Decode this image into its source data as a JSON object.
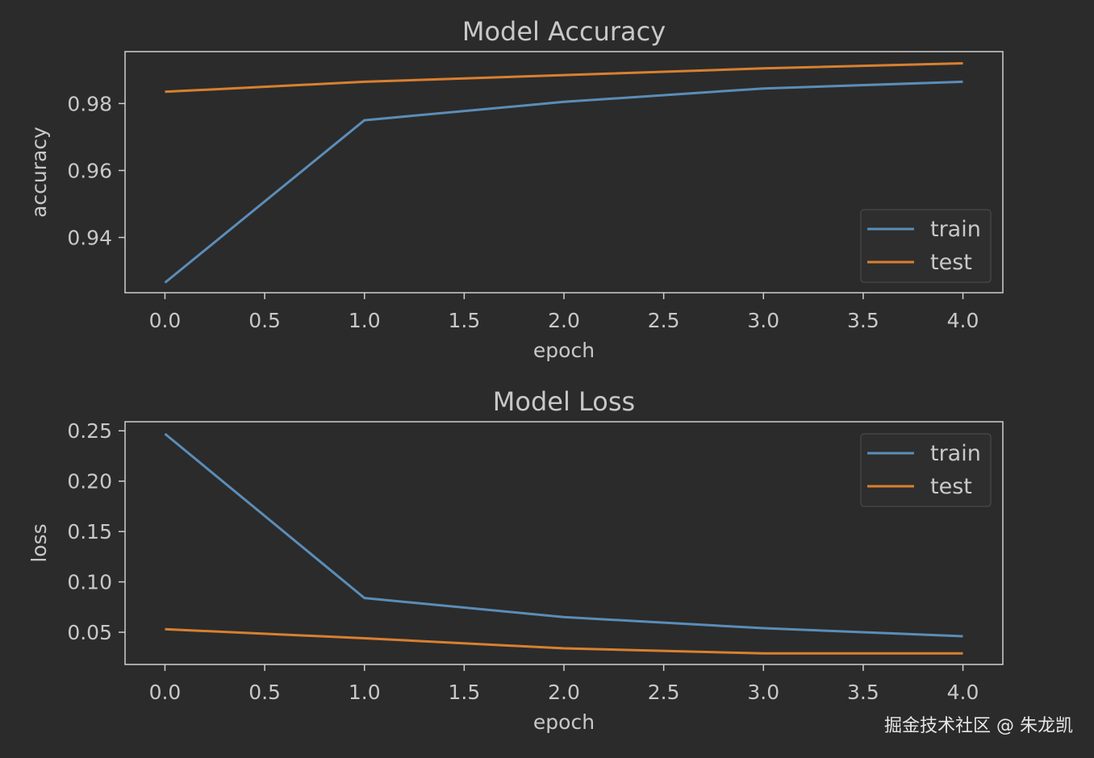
{
  "theme": {
    "background": "#2b2b2b",
    "axes_color": "#cfcfcf",
    "text_color": "#c8c8c8",
    "train_color": "#5b8db8",
    "test_color": "#d98030",
    "legend_bg": "#2e2e2e",
    "legend_border": "#444444"
  },
  "chart_data": [
    {
      "type": "line",
      "title": "Model Accuracy",
      "xlabel": "epoch",
      "ylabel": "accuracy",
      "x": [
        0,
        1,
        2,
        3,
        4
      ],
      "xlim": [
        -0.2,
        4.2
      ],
      "ylim": [
        0.9235,
        0.9955
      ],
      "xticks": [
        0.0,
        0.5,
        1.0,
        1.5,
        2.0,
        2.5,
        3.0,
        3.5,
        4.0
      ],
      "xtick_labels": [
        "0.0",
        "0.5",
        "1.0",
        "1.5",
        "2.0",
        "2.5",
        "3.0",
        "3.5",
        "4.0"
      ],
      "yticks": [
        0.94,
        0.96,
        0.98
      ],
      "ytick_labels": [
        "0.94",
        "0.96",
        "0.98"
      ],
      "grid": false,
      "legend_position": "lower-right",
      "series": [
        {
          "name": "train",
          "values": [
            0.9265,
            0.975,
            0.9805,
            0.9845,
            0.9865
          ]
        },
        {
          "name": "test",
          "values": [
            0.9835,
            0.9865,
            0.9885,
            0.9905,
            0.992
          ]
        }
      ]
    },
    {
      "type": "line",
      "title": "Model Loss",
      "xlabel": "epoch",
      "ylabel": "loss",
      "x": [
        0,
        1,
        2,
        3,
        4
      ],
      "xlim": [
        -0.2,
        4.2
      ],
      "ylim": [
        0.018,
        0.259
      ],
      "xticks": [
        0.0,
        0.5,
        1.0,
        1.5,
        2.0,
        2.5,
        3.0,
        3.5,
        4.0
      ],
      "xtick_labels": [
        "0.0",
        "0.5",
        "1.0",
        "1.5",
        "2.0",
        "2.5",
        "3.0",
        "3.5",
        "4.0"
      ],
      "yticks": [
        0.05,
        0.1,
        0.15,
        0.2,
        0.25
      ],
      "ytick_labels": [
        "0.05",
        "0.10",
        "0.15",
        "0.20",
        "0.25"
      ],
      "grid": false,
      "legend_position": "upper-right",
      "series": [
        {
          "name": "train",
          "values": [
            0.247,
            0.084,
            0.065,
            0.054,
            0.046
          ]
        },
        {
          "name": "test",
          "values": [
            0.053,
            0.044,
            0.034,
            0.029,
            0.029
          ]
        }
      ]
    }
  ],
  "watermark": "掘金技术社区 @ 朱龙凯"
}
